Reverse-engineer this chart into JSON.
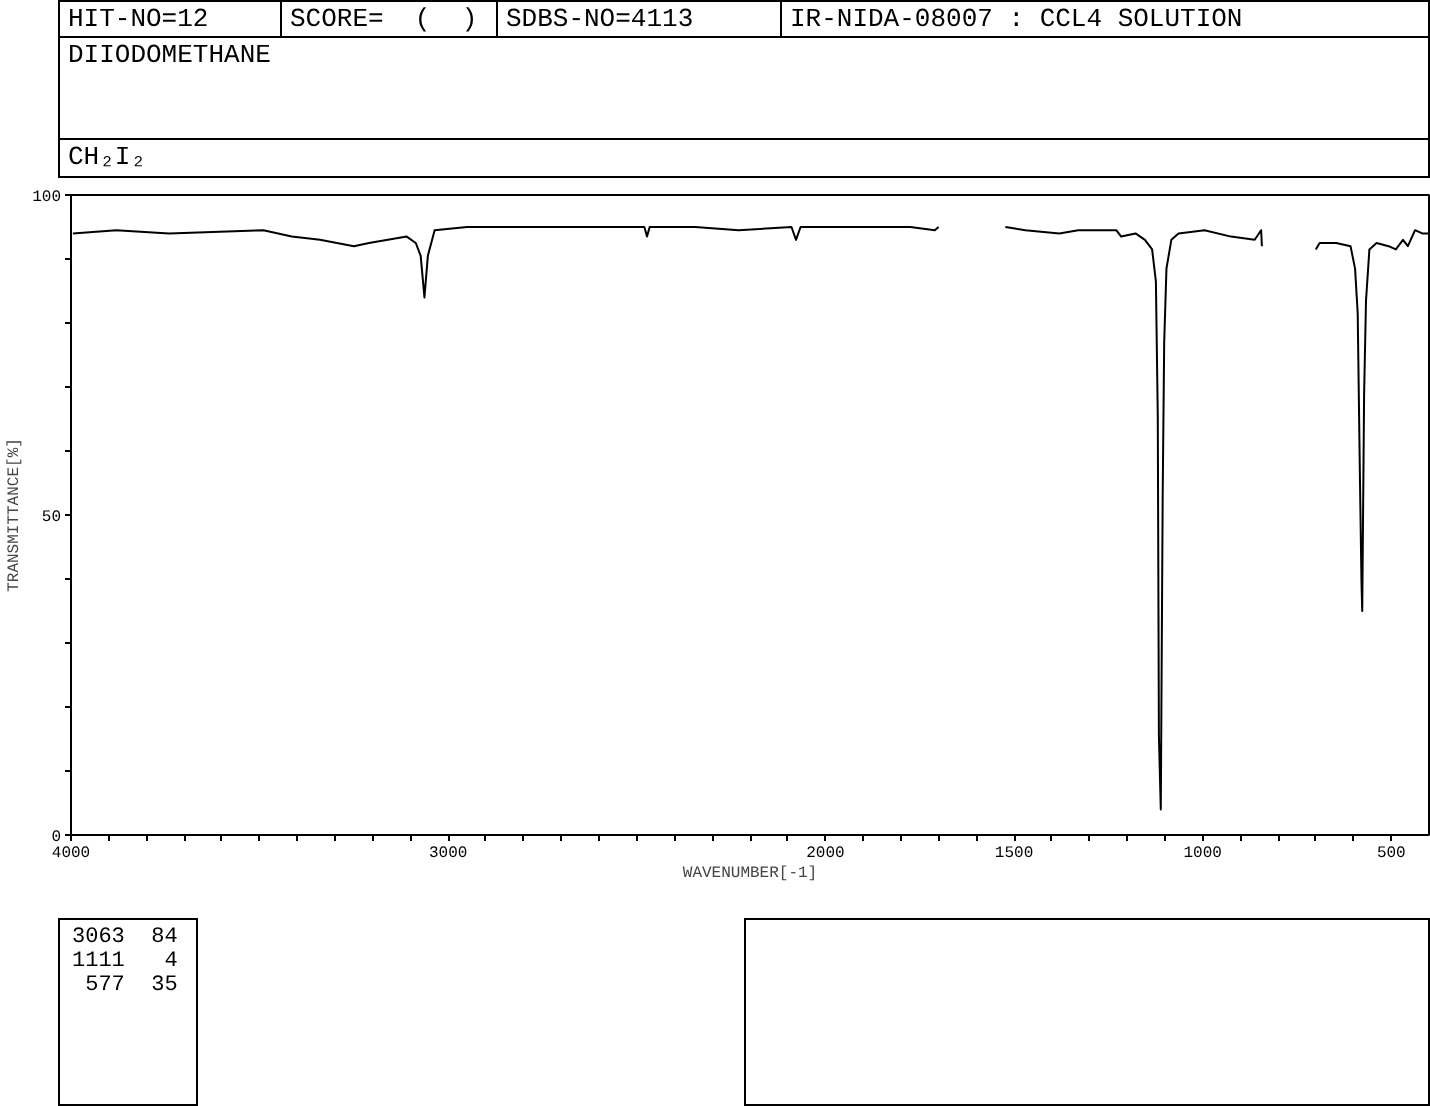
{
  "chart_data": {
    "type": "line",
    "title": "DIIODOMETHANE",
    "subtitle": "CH₂I₂",
    "xlabel": "WAVENUMBER[-1]",
    "ylabel": "TRANSMITTANCE[%]",
    "annotations": [
      "HIT-NO=12",
      "SCORE=  (  )",
      "SDBS-NO=4113",
      "IR-NIDA-08007 : CCL4 SOLUTION",
      "3063  84",
      "1111   4",
      " 577  35"
    ],
    "x": [
      3995,
      3880,
      3740,
      3490,
      3415,
      3340,
      3250,
      3210,
      3110,
      3086,
      3073,
      3063,
      3054,
      3036,
      2950,
      2480,
      2473,
      2466,
      2345,
      2230,
      2090,
      2078,
      2066,
      1775,
      1710,
      1700,
      1610,
      1523,
      1470,
      1380,
      1330,
      1267,
      1229,
      1216,
      1178,
      1153,
      1134,
      1124,
      1119,
      1116,
      1111,
      1106,
      1102,
      1096,
      1083,
      1064,
      995,
      925,
      862,
      845,
      843,
      770,
      700,
      690,
      646,
      608,
      596,
      589,
      583,
      579,
      577,
      572,
      567,
      558,
      539,
      507,
      488,
      469,
      456,
      437,
      418,
      400
    ],
    "series": [
      {
        "color": "#000000",
        "values": [
          94,
          94.5,
          94,
          94.5,
          93.5,
          93,
          92,
          92.5,
          93.5,
          92.5,
          90.5,
          84,
          90.5,
          94.5,
          95,
          95,
          93.5,
          95,
          95,
          94.5,
          95,
          93,
          95,
          95,
          94.5,
          95,
          null,
          95,
          94.5,
          94,
          94.5,
          94.5,
          94.5,
          93.5,
          94,
          93,
          91.5,
          86.5,
          65.5,
          15.5,
          4,
          53,
          77,
          88.5,
          93,
          94,
          94.5,
          93.5,
          93,
          94.5,
          92,
          null,
          91.5,
          92.5,
          92.5,
          92,
          88.5,
          81.5,
          55.5,
          39.5,
          35,
          69,
          83.5,
          91.5,
          92.5,
          92,
          91.5,
          93,
          92,
          94.5,
          94,
          94
        ]
      }
    ],
    "xlim": [
      4000,
      400
    ],
    "xticks": [
      4000,
      {
        "value": 3900,
        "label": null
      },
      {
        "value": 3800,
        "label": null
      },
      {
        "value": 3700,
        "label": null
      },
      {
        "value": 3600,
        "label": null
      },
      {
        "value": 3500,
        "label": null
      },
      {
        "value": 3400,
        "label": null
      },
      {
        "value": 3300,
        "label": null
      },
      {
        "value": 3200,
        "label": null
      },
      {
        "value": 3100,
        "label": null
      },
      3000,
      {
        "value": 2900,
        "label": null
      },
      {
        "value": 2800,
        "label": null
      },
      {
        "value": 2700,
        "label": null
      },
      {
        "value": 2600,
        "label": null
      },
      {
        "value": 2500,
        "label": null
      },
      {
        "value": 2400,
        "label": null
      },
      {
        "value": 2300,
        "label": null
      },
      {
        "value": 2200,
        "label": null
      },
      {
        "value": 2100,
        "label": null
      },
      2000,
      {
        "value": 1900,
        "label": null
      },
      {
        "value": 1800,
        "label": null
      },
      {
        "value": 1700,
        "label": null
      },
      {
        "value": 1600,
        "label": null
      },
      1500,
      {
        "value": 1400,
        "label": null
      },
      {
        "value": 1300,
        "label": null
      },
      {
        "value": 1200,
        "label": null
      },
      {
        "value": 1100,
        "label": null
      },
      1000,
      {
        "value": 900,
        "label": null
      },
      {
        "value": 800,
        "label": null
      },
      {
        "value": 700,
        "label": null
      },
      {
        "value": 600,
        "label": null
      },
      500
    ],
    "ylim": [
      0,
      100
    ],
    "yticks": [
      0,
      {
        "value": 10,
        "label": null
      },
      {
        "value": 20,
        "label": null
      },
      {
        "value": 30,
        "label": null
      },
      {
        "value": 40,
        "label": null
      },
      50,
      {
        "value": 60,
        "label": null
      },
      {
        "value": 70,
        "label": null
      },
      {
        "value": 80,
        "label": null
      },
      {
        "value": 90,
        "label": null
      },
      100
    ]
  }
}
